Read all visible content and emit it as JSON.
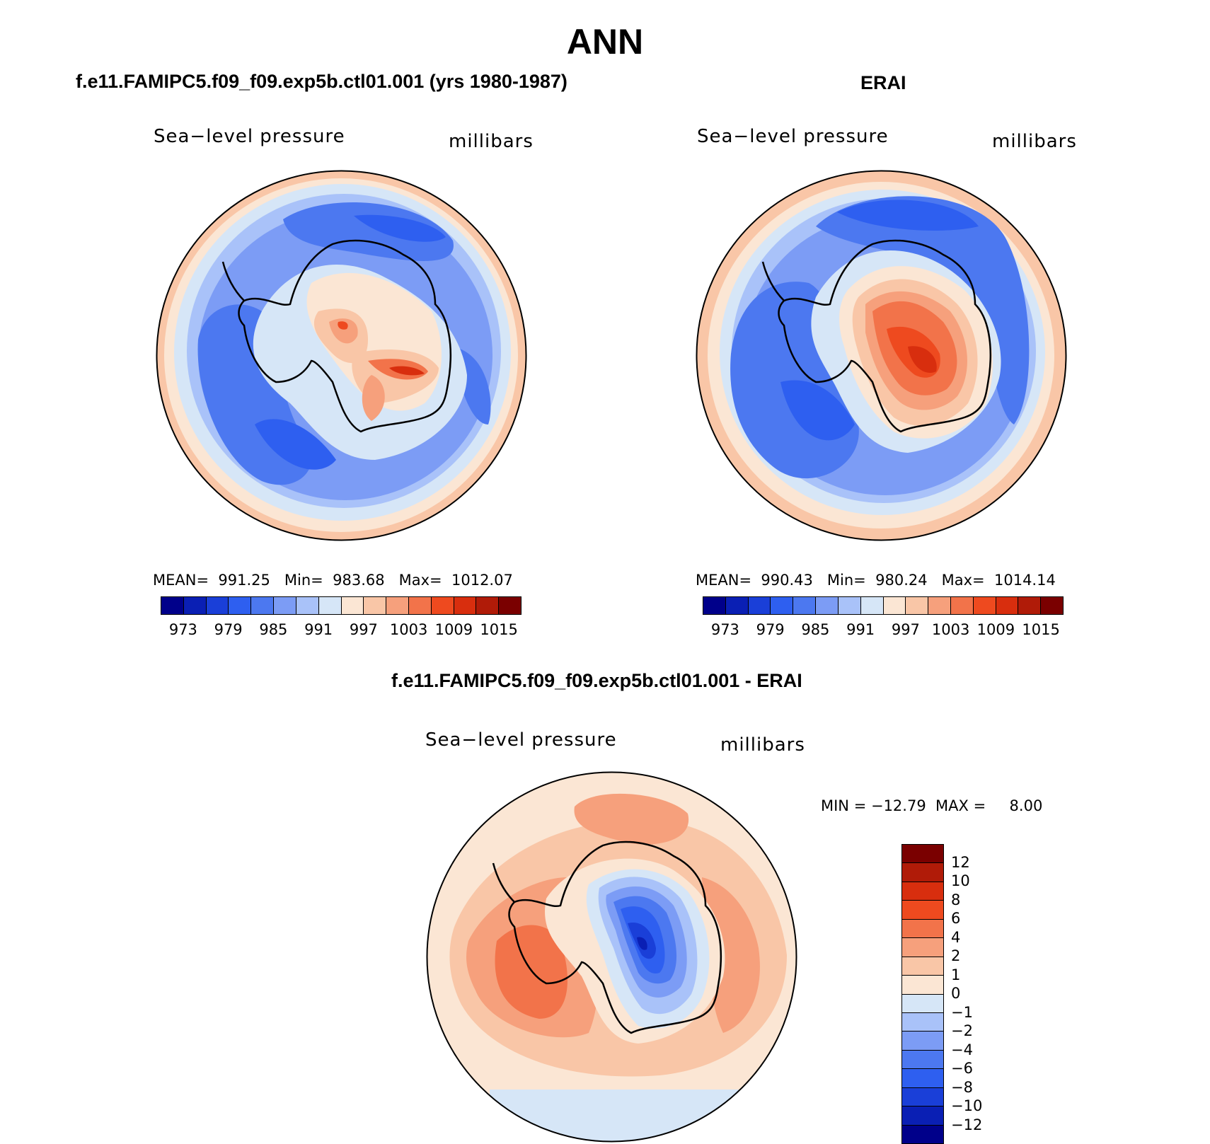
{
  "title": "ANN",
  "panels": [
    {
      "title": "f.e11.FAMIPC5.f09_f09.exp5b.ctl01.001 (yrs 1980-1987)",
      "variable": "Sea−level pressure",
      "units": "millibars",
      "stats": "MEAN=  991.25   Min=  983.68   Max=  1012.07"
    },
    {
      "title": "ERAI",
      "variable": "Sea−level pressure",
      "units": "millibars",
      "stats": "MEAN=  990.43   Min=  980.24   Max=  1014.14"
    },
    {
      "title": "f.e11.FAMIPC5.f09_f09.exp5b.ctl01.001 - ERAI",
      "variable": "Sea−level pressure",
      "units": "millibars",
      "stats": "MIN = −12.79  MAX =     8.00"
    }
  ],
  "abs_colorbar": {
    "labels": [
      "973",
      "979",
      "985",
      "991",
      "997",
      "1003",
      "1009",
      "1015"
    ],
    "colors": [
      "#00008a",
      "#0a1fb4",
      "#1a3fd8",
      "#2e5ff0",
      "#4c78f0",
      "#7c9cf5",
      "#a9c2f9",
      "#d6e6f7",
      "#fbe6d4",
      "#f9c6a7",
      "#f6a07c",
      "#f2734a",
      "#ee4a1f",
      "#d82e0e",
      "#b01b08",
      "#7a0000"
    ]
  },
  "diff_colorbar": {
    "labels": [
      "12",
      "10",
      "8",
      "6",
      "4",
      "2",
      "1",
      "0",
      "−1",
      "−2",
      "−4",
      "−6",
      "−8",
      "−10",
      "−12"
    ],
    "colors": [
      "#7a0000",
      "#b01b08",
      "#d82e0e",
      "#ee4a1f",
      "#f2734a",
      "#f6a07c",
      "#f9c6a7",
      "#fbe6d4",
      "#d6e6f7",
      "#a9c2f9",
      "#7c9cf5",
      "#4c78f0",
      "#2e5ff0",
      "#1a3fd8",
      "#0a1fb4",
      "#00008a"
    ]
  },
  "map": {
    "projection": "south-polar-stereographic",
    "region": "Antarctica"
  }
}
